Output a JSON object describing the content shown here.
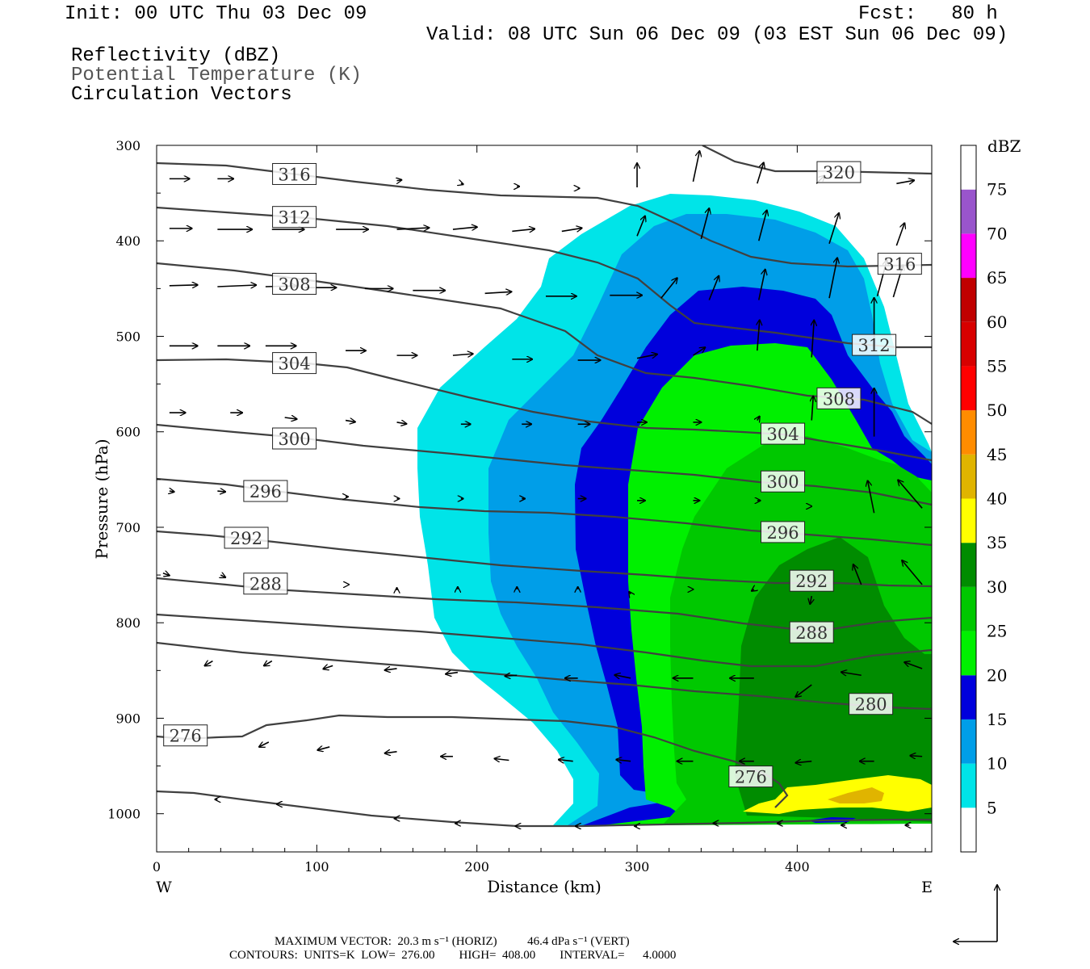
{
  "header": {
    "init": "Init: 00 UTC Thu 03 Dec 09",
    "fcst": "Fcst:   80 h",
    "valid": "Valid: 08 UTC Sun 06 Dec 09 (03 EST Sun 06 Dec 09)",
    "variables": [
      "Reflectivity (dBZ)",
      "Potential Temperature (K)",
      "Circulation Vectors"
    ]
  },
  "footer": {
    "max_vector": "MAXIMUM VECTOR:  20.3 m s⁻¹ (HORIZ)          46.4 dPa s⁻¹ (VERT)",
    "contours": "CONTOURS:  UNITS=K  LOW=  276.00        HIGH=  408.00        INTERVAL=      4.0000"
  },
  "colors": {
    "c5": "#00e4e8",
    "c10": "#009ee8",
    "c15": "#0000dc",
    "c20": "#00f000",
    "c25": "#00c800",
    "c30": "#008c00",
    "c35": "#ffff00",
    "c40": "#e0b400",
    "c45": "#ff8c00",
    "c50": "#ff0000",
    "c55": "#d80000",
    "c60": "#c00000",
    "c65": "#ff00ff",
    "c70": "#9955cc",
    "c75": "#ffffff",
    "contour": "#404040"
  },
  "chart_data": {
    "type": "contour cross-section",
    "xlabel": "Distance (km)",
    "ylabel": "Pressure (hPa)",
    "x_left_label": "W",
    "x_right_label": "E",
    "xlim": [
      0,
      484
    ],
    "ylim": [
      1040,
      300
    ],
    "xticks": [
      0,
      100,
      200,
      300,
      400
    ],
    "yticks": [
      300,
      400,
      500,
      600,
      700,
      800,
      900,
      1000
    ],
    "colorbar": {
      "unit": "dBZ",
      "levels": [
        5,
        10,
        15,
        20,
        25,
        30,
        35,
        40,
        45,
        50,
        55,
        60,
        65,
        70,
        75
      ]
    },
    "theta_labels": [
      {
        "text": "316",
        "x": 86,
        "p": 330
      },
      {
        "text": "312",
        "x": 86,
        "p": 375
      },
      {
        "text": "308",
        "x": 86,
        "p": 445
      },
      {
        "text": "304",
        "x": 86,
        "p": 528
      },
      {
        "text": "300",
        "x": 86,
        "p": 607
      },
      {
        "text": "296",
        "x": 68,
        "p": 662
      },
      {
        "text": "292",
        "x": 56,
        "p": 711
      },
      {
        "text": "288",
        "x": 68,
        "p": 759
      },
      {
        "text": "276",
        "x": 18,
        "p": 918
      },
      {
        "text": "320",
        "x": 426,
        "p": 328
      },
      {
        "text": "316",
        "x": 464,
        "p": 424
      },
      {
        "text": "312",
        "x": 448,
        "p": 509
      },
      {
        "text": "308",
        "x": 426,
        "p": 565
      },
      {
        "text": "304",
        "x": 391,
        "p": 602
      },
      {
        "text": "300",
        "x": 391,
        "p": 652
      },
      {
        "text": "296",
        "x": 391,
        "p": 705
      },
      {
        "text": "292",
        "x": 409,
        "p": 756
      },
      {
        "text": "288",
        "x": 409,
        "p": 810
      },
      {
        "text": "280",
        "x": 446,
        "p": 885
      },
      {
        "text": "276",
        "x": 371,
        "p": 961
      }
    ]
  }
}
